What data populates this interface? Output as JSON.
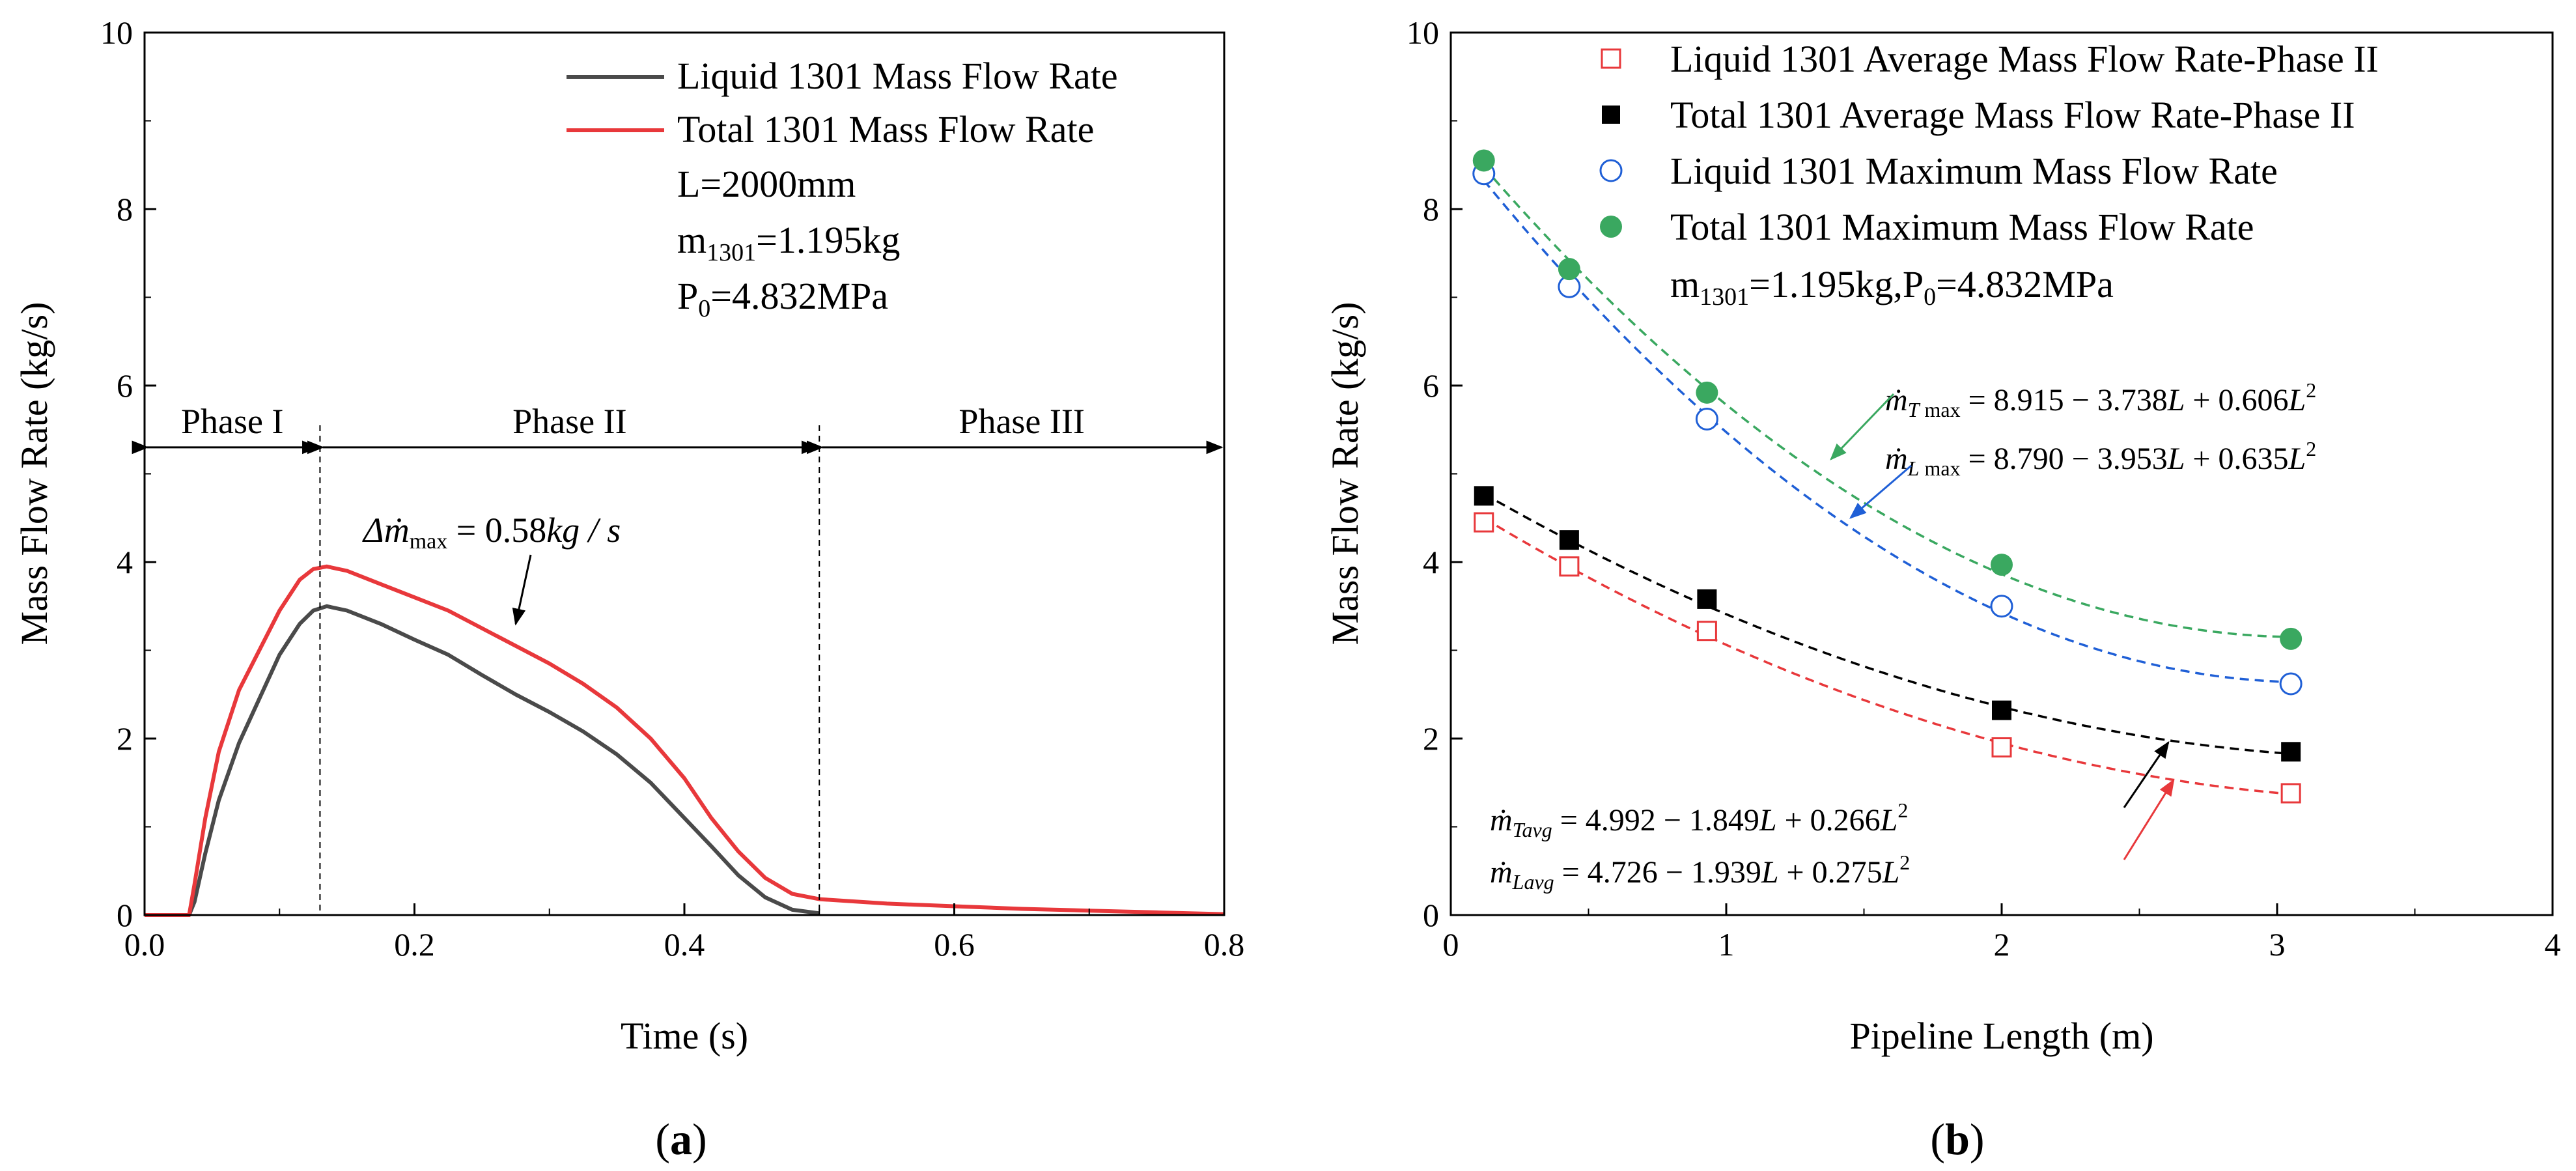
{
  "chart_data": [
    {
      "type": "line",
      "panel_label": "a",
      "xlabel": "Time (s)",
      "ylabel": "Mass Flow Rate (kg/s)",
      "xlim": [
        0,
        0.8
      ],
      "ylim": [
        0,
        10
      ],
      "xticks": [
        "0.0",
        "0.2",
        "0.4",
        "0.6",
        "0.8"
      ],
      "yticks": [
        "0",
        "2",
        "4",
        "6",
        "8",
        "10"
      ],
      "legend": [
        "Liquid 1301 Mass Flow Rate",
        "Total 1301 Mass Flow Rate"
      ],
      "info_lines": [
        "L=2000mm",
        "m1301=1.195kg",
        "P0=4.832MPa"
      ],
      "phases": [
        {
          "name": "Phase I",
          "start": 0.0,
          "end": 0.13
        },
        {
          "name": "Phase II",
          "start": 0.13,
          "end": 0.5
        },
        {
          "name": "Phase III",
          "start": 0.5,
          "end": 0.8
        }
      ],
      "phase_arrow_y": 5.3,
      "delta_annotation": "Δṁmax = 0.58kg / s",
      "colors": {
        "liquid": "#4a4a4a",
        "total": "#e8383b",
        "frame": "#000000"
      },
      "series": [
        {
          "name": "Liquid 1301 Mass Flow Rate",
          "x": [
            0,
            0.033,
            0.037,
            0.045,
            0.055,
            0.07,
            0.085,
            0.1,
            0.115,
            0.125,
            0.135,
            0.15,
            0.175,
            0.2,
            0.225,
            0.25,
            0.275,
            0.3,
            0.325,
            0.35,
            0.375,
            0.4,
            0.42,
            0.44,
            0.46,
            0.48,
            0.5
          ],
          "values": [
            0,
            0,
            0.15,
            0.7,
            1.3,
            1.95,
            2.45,
            2.95,
            3.3,
            3.45,
            3.5,
            3.45,
            3.3,
            3.12,
            2.95,
            2.72,
            2.5,
            2.3,
            2.08,
            1.82,
            1.5,
            1.1,
            0.78,
            0.45,
            0.2,
            0.06,
            0.02
          ]
        },
        {
          "name": "Total 1301 Mass Flow Rate",
          "x": [
            0,
            0.033,
            0.037,
            0.045,
            0.055,
            0.07,
            0.085,
            0.1,
            0.115,
            0.125,
            0.135,
            0.15,
            0.175,
            0.2,
            0.225,
            0.25,
            0.275,
            0.3,
            0.325,
            0.35,
            0.375,
            0.4,
            0.42,
            0.44,
            0.46,
            0.48,
            0.5,
            0.55,
            0.6,
            0.65,
            0.7,
            0.75,
            0.8
          ],
          "values": [
            0,
            0,
            0.35,
            1.1,
            1.85,
            2.55,
            3.0,
            3.45,
            3.8,
            3.92,
            3.95,
            3.9,
            3.75,
            3.6,
            3.45,
            3.25,
            3.05,
            2.85,
            2.62,
            2.35,
            2.0,
            1.55,
            1.1,
            0.72,
            0.42,
            0.24,
            0.18,
            0.13,
            0.1,
            0.07,
            0.05,
            0.03,
            0.01
          ]
        }
      ]
    },
    {
      "type": "scatter",
      "panel_label": "b",
      "xlabel": "Pipeline Length (m)",
      "ylabel": "Mass Flow Rate (kg/s)",
      "xlim": [
        0,
        4
      ],
      "ylim": [
        0,
        10
      ],
      "xticks": [
        "0",
        "1",
        "2",
        "3",
        "4"
      ],
      "yticks": [
        "0",
        "2",
        "4",
        "6",
        "8",
        "10"
      ],
      "legend": [
        "Liquid 1301 Average Mass Flow Rate-Phase II",
        "Total 1301 Average Mass Flow Rate-Phase II",
        "Liquid 1301 Maximum Mass Flow Rate",
        "Total 1301 Maximum Mass Flow Rate"
      ],
      "info_line": "m1301=1.195kg,P0=4.832MPa",
      "colors": {
        "red": "#e8383b",
        "black": "#000000",
        "blue": "#1f5fd6",
        "green": "#3aa860"
      },
      "equations": {
        "total_max": "ṁT max = 8.915 − 3.738L + 0.606L2",
        "liquid_max": "ṁL max = 8.790 − 3.953L + 0.635L2",
        "total_avg": "ṁTavg = 4.992 − 1.849L + 0.266L2",
        "liquid_avg": "ṁLavg = 4.726 − 1.939L + 0.275L2"
      },
      "series": [
        {
          "name": "Liquid 1301 Average Mass Flow Rate-Phase II",
          "marker": "open-square",
          "color": "red",
          "x": [
            0.12,
            0.43,
            0.93,
            2.0,
            3.05
          ],
          "values": [
            4.45,
            3.95,
            3.22,
            1.9,
            1.38
          ],
          "fit": [
            4.726,
            -1.939,
            0.275
          ]
        },
        {
          "name": "Total 1301 Average Mass Flow Rate-Phase II",
          "marker": "filled-square",
          "color": "black",
          "x": [
            0.12,
            0.43,
            0.93,
            2.0,
            3.05
          ],
          "values": [
            4.75,
            4.25,
            3.58,
            2.32,
            1.85
          ],
          "fit": [
            4.992,
            -1.849,
            0.266
          ]
        },
        {
          "name": "Liquid 1301 Maximum Mass Flow Rate",
          "marker": "open-circle",
          "color": "blue",
          "x": [
            0.12,
            0.43,
            0.93,
            2.0,
            3.05
          ],
          "values": [
            8.4,
            7.12,
            5.62,
            3.5,
            2.62
          ],
          "fit": [
            8.79,
            -3.953,
            0.635
          ]
        },
        {
          "name": "Total 1301 Maximum Mass Flow Rate",
          "marker": "filled-circle",
          "color": "green",
          "x": [
            0.12,
            0.43,
            0.93,
            2.0,
            3.05
          ],
          "values": [
            8.55,
            7.32,
            5.92,
            3.97,
            3.13
          ],
          "fit": [
            8.915,
            -3.738,
            0.606
          ]
        }
      ]
    }
  ]
}
